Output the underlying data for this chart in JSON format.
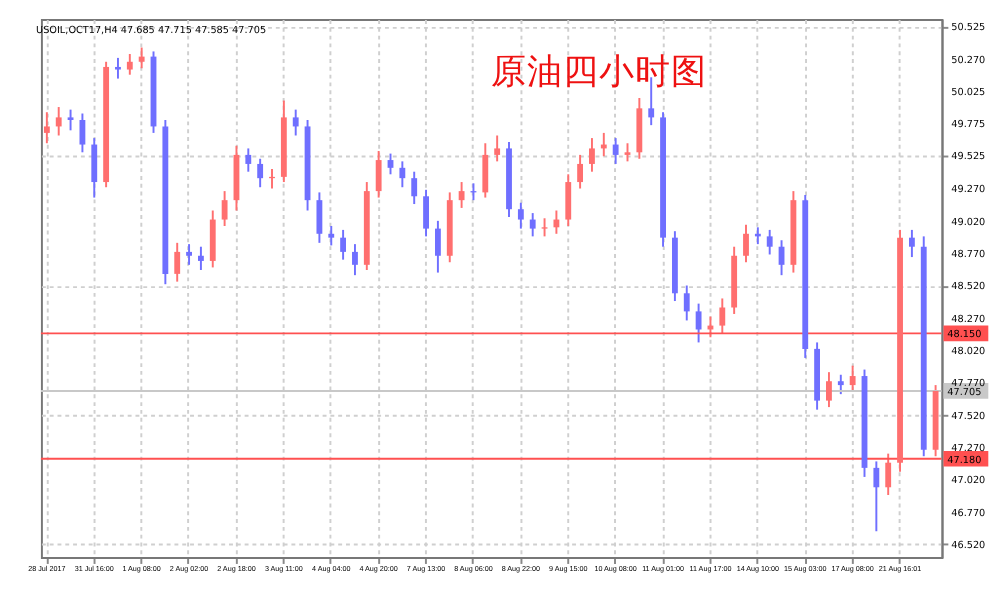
{
  "chart_data": {
    "type": "candlestick",
    "title": "USOIL,OCT17,H4 47.685 47.715 47.585 47.705",
    "annotations": [
      "原油四小时图"
    ],
    "categories": [
      "28 Jul 2017",
      null,
      null,
      null,
      "31 Jul 16:00",
      null,
      null,
      null,
      "1 Aug 08:00",
      null,
      null,
      null,
      "2 Aug 02:00",
      null,
      null,
      null,
      "2 Aug 18:00",
      null,
      null,
      null,
      "3 Aug 11:00",
      null,
      null,
      null,
      "4 Aug 04:00",
      null,
      null,
      null,
      "4 Aug 20:00",
      null,
      null,
      null,
      "7 Aug 13:00",
      null,
      null,
      null,
      "8 Aug 06:00",
      null,
      null,
      null,
      "8 Aug 22:00",
      null,
      null,
      null,
      "9 Aug 15:00",
      null,
      null,
      null,
      "10 Aug 08:00",
      null,
      null,
      null,
      "11 Aug 01:00",
      null,
      null,
      null,
      "11 Aug 17:00",
      null,
      null,
      null,
      "14 Aug 10:00",
      null,
      null,
      null,
      "15 Aug 03:00",
      null,
      null,
      null,
      "17 Aug 08:00",
      null,
      null,
      null,
      "21 Aug 16:01",
      null,
      null,
      null
    ],
    "ohlc": [
      [
        49.7,
        49.86,
        49.62,
        49.75
      ],
      [
        49.75,
        49.9,
        49.68,
        49.82
      ],
      [
        49.82,
        49.88,
        49.72,
        49.8
      ],
      [
        49.8,
        49.85,
        49.55,
        49.61
      ],
      [
        49.61,
        49.66,
        49.2,
        49.32
      ],
      [
        49.32,
        50.25,
        49.28,
        50.21
      ],
      [
        50.21,
        50.28,
        50.12,
        50.19
      ],
      [
        50.19,
        50.31,
        50.15,
        50.25
      ],
      [
        50.25,
        50.36,
        50.2,
        50.29
      ],
      [
        50.29,
        50.33,
        49.7,
        49.75
      ],
      [
        49.75,
        49.8,
        48.53,
        48.61
      ],
      [
        48.61,
        48.85,
        48.55,
        48.78
      ],
      [
        48.78,
        48.84,
        48.68,
        48.75
      ],
      [
        48.75,
        48.82,
        48.64,
        48.71
      ],
      [
        48.71,
        49.1,
        48.66,
        49.03
      ],
      [
        49.03,
        49.25,
        48.98,
        49.18
      ],
      [
        49.18,
        49.6,
        49.1,
        49.53
      ],
      [
        49.53,
        49.58,
        49.4,
        49.46
      ],
      [
        49.46,
        49.5,
        49.28,
        49.35
      ],
      [
        49.35,
        49.42,
        49.27,
        49.36
      ],
      [
        49.36,
        49.95,
        49.32,
        49.82
      ],
      [
        49.82,
        49.88,
        49.68,
        49.75
      ],
      [
        49.75,
        49.8,
        49.1,
        49.18
      ],
      [
        49.18,
        49.24,
        48.85,
        48.92
      ],
      [
        48.92,
        48.98,
        48.83,
        48.89
      ],
      [
        48.89,
        48.95,
        48.72,
        48.78
      ],
      [
        48.78,
        48.84,
        48.6,
        48.68
      ],
      [
        48.68,
        49.32,
        48.64,
        49.25
      ],
      [
        49.25,
        49.56,
        49.2,
        49.49
      ],
      [
        49.49,
        49.54,
        49.38,
        49.43
      ],
      [
        49.43,
        49.48,
        49.28,
        49.35
      ],
      [
        49.35,
        49.4,
        49.15,
        49.21
      ],
      [
        49.21,
        49.26,
        48.9,
        48.96
      ],
      [
        48.96,
        49.02,
        48.62,
        48.75
      ],
      [
        48.75,
        49.24,
        48.7,
        49.18
      ],
      [
        49.18,
        49.32,
        49.12,
        49.25
      ],
      [
        49.25,
        49.31,
        49.18,
        49.24
      ],
      [
        49.24,
        49.62,
        49.2,
        49.53
      ],
      [
        49.53,
        49.68,
        49.48,
        49.58
      ],
      [
        49.58,
        49.63,
        49.05,
        49.11
      ],
      [
        49.11,
        49.16,
        48.96,
        49.03
      ],
      [
        49.03,
        49.08,
        48.9,
        48.96
      ],
      [
        48.96,
        49.04,
        48.9,
        48.97
      ],
      [
        48.97,
        49.1,
        48.92,
        49.03
      ],
      [
        49.03,
        49.38,
        48.98,
        49.32
      ],
      [
        49.32,
        49.53,
        49.27,
        49.46
      ],
      [
        49.46,
        49.66,
        49.4,
        49.58
      ],
      [
        49.58,
        49.7,
        49.52,
        49.61
      ],
      [
        49.61,
        49.66,
        49.46,
        49.53
      ],
      [
        49.53,
        49.62,
        49.48,
        49.55
      ],
      [
        49.55,
        49.97,
        49.5,
        49.89
      ],
      [
        49.89,
        50.13,
        49.76,
        49.82
      ],
      [
        49.82,
        49.86,
        48.82,
        48.89
      ],
      [
        48.89,
        48.94,
        48.4,
        48.46
      ],
      [
        48.46,
        48.52,
        48.25,
        48.32
      ],
      [
        48.32,
        48.38,
        48.08,
        48.18
      ],
      [
        48.18,
        48.28,
        48.12,
        48.21
      ],
      [
        48.21,
        48.42,
        48.15,
        48.35
      ],
      [
        48.35,
        48.82,
        48.3,
        48.75
      ],
      [
        48.75,
        48.99,
        48.7,
        48.92
      ],
      [
        48.92,
        48.97,
        48.84,
        48.9
      ],
      [
        48.9,
        48.95,
        48.76,
        48.82
      ],
      [
        48.82,
        48.87,
        48.6,
        48.68
      ],
      [
        48.68,
        49.25,
        48.62,
        49.18
      ],
      [
        49.18,
        49.22,
        47.96,
        48.03
      ],
      [
        48.03,
        48.08,
        47.56,
        47.63
      ],
      [
        47.63,
        47.85,
        47.58,
        47.78
      ],
      [
        47.78,
        47.83,
        47.68,
        47.75
      ],
      [
        47.75,
        47.9,
        47.7,
        47.82
      ],
      [
        47.82,
        47.87,
        47.04,
        47.11
      ],
      [
        47.11,
        47.16,
        46.62,
        46.96
      ],
      [
        46.96,
        47.22,
        46.9,
        47.15
      ],
      [
        47.15,
        48.95,
        47.08,
        48.89
      ],
      [
        48.89,
        48.95,
        48.74,
        48.82
      ],
      [
        48.82,
        48.9,
        47.2,
        47.25
      ],
      [
        47.25,
        47.75,
        47.2,
        47.705
      ]
    ],
    "colors": [
      "#ff6f6f",
      "#ff6f6f",
      "#6f6fff",
      "#6f6fff",
      "#6f6fff",
      "#ff6f6f",
      "#6f6fff",
      "#ff6f6f",
      "#ff6f6f",
      "#6f6fff",
      "#6f6fff",
      "#ff6f6f",
      "#6f6fff",
      "#6f6fff",
      "#ff6f6f",
      "#ff6f6f",
      "#ff6f6f",
      "#6f6fff",
      "#6f6fff",
      "#ff6f6f",
      "#ff6f6f",
      "#6f6fff",
      "#6f6fff",
      "#6f6fff",
      "#6f6fff",
      "#6f6fff",
      "#6f6fff",
      "#ff6f6f",
      "#ff6f6f",
      "#6f6fff",
      "#6f6fff",
      "#6f6fff",
      "#6f6fff",
      "#6f6fff",
      "#ff6f6f",
      "#ff6f6f",
      "#6f6fff",
      "#ff6f6f",
      "#ff6f6f",
      "#6f6fff",
      "#6f6fff",
      "#6f6fff",
      "#ff6f6f",
      "#ff6f6f",
      "#ff6f6f",
      "#ff6f6f",
      "#ff6f6f",
      "#ff6f6f",
      "#6f6fff",
      "#ff6f6f",
      "#ff6f6f",
      "#6f6fff",
      "#6f6fff",
      "#6f6fff",
      "#6f6fff",
      "#6f6fff",
      "#ff6f6f",
      "#ff6f6f",
      "#ff6f6f",
      "#ff6f6f",
      "#6f6fff",
      "#6f6fff",
      "#6f6fff",
      "#ff6f6f",
      "#6f6fff",
      "#6f6fff",
      "#ff6f6f",
      "#6f6fff",
      "#ff6f6f",
      "#6f6fff",
      "#6f6fff",
      "#ff6f6f",
      "#ff6f6f",
      "#6f6fff",
      "#6f6fff",
      "#ff6f6f"
    ],
    "ylim": [
      46.42,
      50.58
    ],
    "yticks": [
      {
        "value": 46.52,
        "label": "46.520"
      },
      {
        "value": 46.77,
        "label": "46.770"
      },
      {
        "value": 47.02,
        "label": "47.020"
      },
      {
        "value": 47.27,
        "label": "47.270"
      },
      {
        "value": 47.52,
        "label": "47.520"
      },
      {
        "value": 47.77,
        "label": "47.770"
      },
      {
        "value": 48.02,
        "label": "48.020"
      },
      {
        "value": 48.27,
        "label": "48.270"
      },
      {
        "value": 48.52,
        "label": "48.520"
      },
      {
        "value": 48.77,
        "label": "48.770"
      },
      {
        "value": 49.02,
        "label": "49.020"
      },
      {
        "value": 49.27,
        "label": "49.270"
      },
      {
        "value": 49.525,
        "label": "49.525"
      },
      {
        "value": 49.775,
        "label": "49.775"
      },
      {
        "value": 50.025,
        "label": "50.025"
      },
      {
        "value": 50.27,
        "label": "50.270"
      },
      {
        "value": 50.525,
        "label": "50.525"
      }
    ],
    "ref_lines": [
      {
        "axis": "y",
        "value": 48.15,
        "label": "48.150",
        "color": "#ff5050"
      },
      {
        "axis": "y",
        "value": 47.18,
        "label": "47.180",
        "color": "#ff5050"
      },
      {
        "axis": "y",
        "value": 47.705,
        "label": "47.705",
        "color": "#c8c8c8"
      }
    ],
    "grid": true
  }
}
